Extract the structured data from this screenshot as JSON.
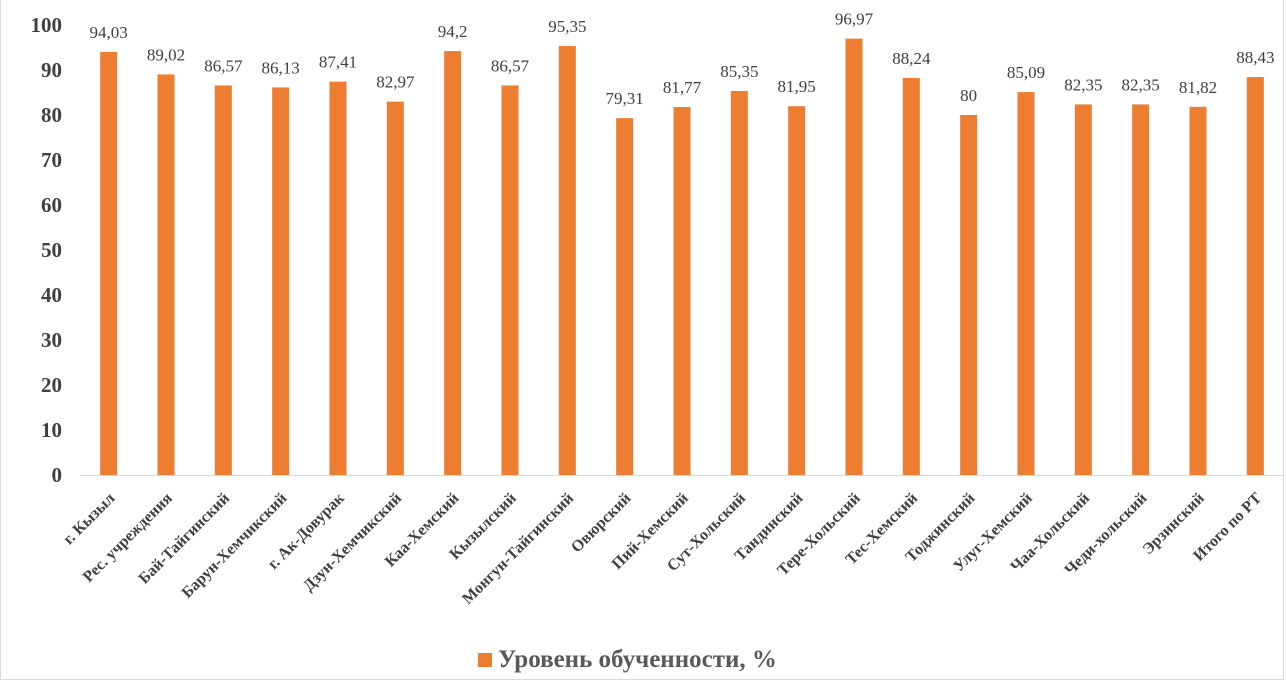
{
  "chart_data": {
    "type": "bar",
    "categories": [
      "г. Кызыл",
      "Рес. учреждения",
      "Бай-Тайгинский",
      "Барун-Хемчикский",
      "г. Ак-Довурак",
      "Дзун-Хемчикский",
      "Каа-Хемский",
      "Кызылский",
      "Монгун-Тайгинский",
      "Овюрский",
      "Пий-Хемский",
      "Сут-Хольский",
      "Тандинский",
      "Тере-Хольский",
      "Тес-Хемский",
      "Тоджинский",
      "Улуг-Хемский",
      "Чаа-Хольский",
      "Чеди-хольский",
      "Эрзинский",
      "Итого по РТ"
    ],
    "series": [
      {
        "name": "Уровень обученности, %",
        "values": [
          94.03,
          89.02,
          86.57,
          86.13,
          87.41,
          82.97,
          94.2,
          86.57,
          95.35,
          79.31,
          81.77,
          85.35,
          81.95,
          96.97,
          88.24,
          80,
          85.09,
          82.35,
          82.35,
          81.82,
          88.43
        ],
        "labels": [
          "94,03",
          "89,02",
          "86,57",
          "86,13",
          "87,41",
          "82,97",
          "94,2",
          "86,57",
          "95,35",
          "79,31",
          "81,77",
          "85,35",
          "81,95",
          "96,97",
          "88,24",
          "80",
          "85,09",
          "82,35",
          "82,35",
          "81,82",
          "88,43"
        ]
      }
    ],
    "yticks": [
      "0",
      "10",
      "20",
      "30",
      "40",
      "50",
      "60",
      "70",
      "80",
      "90",
      "100"
    ],
    "ylim": [
      0,
      100
    ],
    "grid": false,
    "legend_position": "bottom",
    "color": "#ED7D31"
  }
}
